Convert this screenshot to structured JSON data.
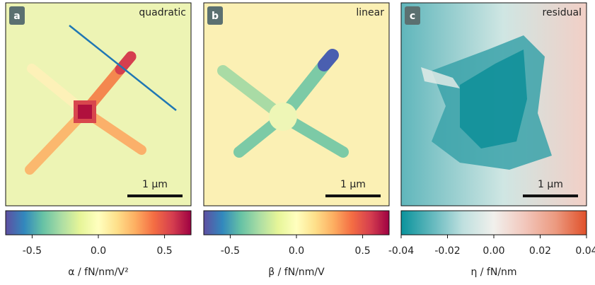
{
  "chart_data": [
    {
      "type": "colorbar",
      "panel_label": "a",
      "title": "quadratic",
      "scale_bar_label": "1 µm",
      "xlabel": "α / fN/nm/V²",
      "xlim": [
        -0.7,
        0.7
      ],
      "xticks": [
        -0.5,
        {
          "value": 0,
          "label": "0.0"
        },
        0.5
      ],
      "colormap": [
        "#5e4fa2",
        "#3288bd",
        "#66c2a5",
        "#abdda4",
        "#e6f598",
        "#ffffbf",
        "#fee08b",
        "#fdae61",
        "#f46d43",
        "#d53e4f",
        "#9e0142"
      ]
    },
    {
      "type": "colorbar",
      "panel_label": "b",
      "title": "linear",
      "scale_bar_label": "1 µm",
      "xlabel": "β / fN/nm/V",
      "xlim": [
        -0.7,
        0.7
      ],
      "xticks": [
        -0.5,
        {
          "value": 0,
          "label": "0.0"
        },
        0.5
      ],
      "colormap": [
        "#5e4fa2",
        "#3288bd",
        "#66c2a5",
        "#abdda4",
        "#e6f598",
        "#ffffbf",
        "#fee08b",
        "#fdae61",
        "#f46d43",
        "#d53e4f",
        "#9e0142"
      ]
    },
    {
      "type": "colorbar",
      "panel_label": "c",
      "title": "residual",
      "scale_bar_label": "1 µm",
      "xlabel": "η / fN/nm",
      "xlim": [
        -0.04,
        0.04
      ],
      "xticks": [
        -0.04,
        -0.02,
        {
          "value": 0,
          "label": "0.00"
        },
        0.02,
        0.04
      ],
      "colormap": [
        "#0a939c",
        "#62b8bd",
        "#bfe0df",
        "#f1f0ec",
        "#f2c7bc",
        "#ec9a80",
        "#e0502a"
      ]
    }
  ]
}
